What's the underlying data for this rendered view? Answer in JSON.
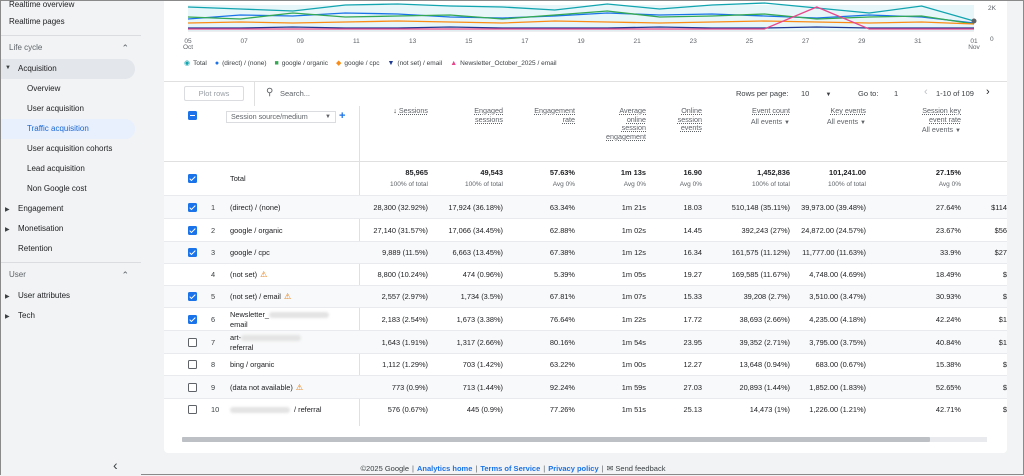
{
  "sidebar": {
    "top_items": [
      "Realtime overview",
      "Realtime pages"
    ],
    "lifecycle_label": "Life cycle",
    "acquisition_label": "Acquisition",
    "acquisition_children": [
      "Overview",
      "User acquisition",
      "Traffic acquisition",
      "User acquisition cohorts",
      "Lead acquisition",
      "Non Google cost"
    ],
    "selected_child": "Traffic acquisition",
    "lifecycle_items": [
      "Engagement",
      "Monetisation",
      "Retention"
    ],
    "user_label": "User",
    "user_items": [
      "User attributes",
      "Tech"
    ]
  },
  "chart": {
    "x_labels": [
      "05\nOct",
      "07",
      "09",
      "11",
      "13",
      "15",
      "17",
      "19",
      "21",
      "23",
      "25",
      "27",
      "29",
      "31",
      "01\nNov"
    ],
    "y_labels": [
      "2K",
      "0"
    ],
    "series_colors": {
      "total": "#12a4af",
      "direct": "#1a73e8",
      "organic": "#34a853",
      "cpc": "#fa8c16",
      "notset_email": "#1f3a93",
      "newsletter": "#e8478b"
    },
    "legend": [
      {
        "label": "Total",
        "icon": "drop-icon",
        "color": "#12a4af"
      },
      {
        "label": "(direct) / (none)",
        "icon": "dot-icon",
        "color": "#1a73e8"
      },
      {
        "label": "google / organic",
        "icon": "square-icon",
        "color": "#34a853"
      },
      {
        "label": "google / cpc",
        "icon": "diamond-icon",
        "color": "#fa8c16"
      },
      {
        "label": "(not set) / email",
        "icon": "triangle-down-icon",
        "color": "#1f3a93"
      },
      {
        "label": "Newsletter_October_2025 / email",
        "icon": "triangle-up-icon",
        "color": "#e8478b"
      }
    ]
  },
  "toolbar": {
    "plot_rows": "Plot rows",
    "search_placeholder": "Search...",
    "rows_per_page_label": "Rows per page:",
    "rows_per_page_value": "10",
    "goto_label": "Go to:",
    "goto_value": "1",
    "page_range": "1-10 of 109"
  },
  "table": {
    "dimension": "Session source/medium",
    "columns": [
      {
        "title": "Sessions",
        "sorted": true
      },
      {
        "title": "Engaged\nsessions"
      },
      {
        "title": "Engagement\nrate"
      },
      {
        "title": "Average\nonline\nsession\nengagement"
      },
      {
        "title": "Online\nsession\nevents"
      },
      {
        "title": "Event count",
        "sub": "All events"
      },
      {
        "title": "Key events",
        "sub": "All events"
      },
      {
        "title": "Session key\nevent rate",
        "sub": "All events"
      }
    ],
    "total": {
      "label": "Total",
      "values": [
        "85,965",
        "49,543",
        "57.63%",
        "1m 13s",
        "16.90",
        "1,452,836",
        "101,241.00",
        "27.15%"
      ],
      "subs": [
        "100% of total",
        "100% of total",
        "Avg 0%",
        "Avg 0%",
        "Avg 0%",
        "100% of total",
        "100% of total",
        "Avg 0%"
      ]
    },
    "rows": [
      {
        "n": "1",
        "name": "(direct) / (none)",
        "checked": true,
        "values": [
          "28,300 (32.92%)",
          "17,924 (36.18%)",
          "63.34%",
          "1m 21s",
          "18.03",
          "510,148 (35.11%)",
          "39,973.00 (39.48%)",
          "27.64%",
          "$114"
        ]
      },
      {
        "n": "2",
        "name": "google / organic",
        "checked": true,
        "values": [
          "27,140 (31.57%)",
          "17,066 (34.45%)",
          "62.88%",
          "1m 02s",
          "14.45",
          "392,243 (27%)",
          "24,872.00 (24.57%)",
          "23.67%",
          "$56"
        ]
      },
      {
        "n": "3",
        "name": "google / cpc",
        "checked": true,
        "values": [
          "9,889 (11.5%)",
          "6,663 (13.45%)",
          "67.38%",
          "1m 12s",
          "16.34",
          "161,575 (11.12%)",
          "11,777.00 (11.63%)",
          "33.9%",
          "$27"
        ]
      },
      {
        "n": "4",
        "name": "(not set)",
        "checked": false,
        "nobox": true,
        "warn": true,
        "values": [
          "8,800 (10.24%)",
          "474 (0.96%)",
          "5.39%",
          "1m 05s",
          "19.27",
          "169,585 (11.67%)",
          "4,748.00 (4.69%)",
          "18.49%",
          "$"
        ]
      },
      {
        "n": "5",
        "name": "(not set) / email",
        "checked": true,
        "warn": true,
        "values": [
          "2,557 (2.97%)",
          "1,734 (3.5%)",
          "67.81%",
          "1m 07s",
          "15.33",
          "39,208 (2.7%)",
          "3,510.00 (3.47%)",
          "30.93%",
          "$"
        ]
      },
      {
        "n": "6",
        "name": "Newsletter_",
        "name2": "email",
        "checked": true,
        "blur": true,
        "values": [
          "2,183 (2.54%)",
          "1,673 (3.38%)",
          "76.64%",
          "1m 22s",
          "17.72",
          "38,693 (2.66%)",
          "4,235.00 (4.18%)",
          "42.24%",
          "$1"
        ]
      },
      {
        "n": "7",
        "name": "art-",
        "name2": "referral",
        "checked": false,
        "blur": true,
        "values": [
          "1,643 (1.91%)",
          "1,317 (2.66%)",
          "80.16%",
          "1m 54s",
          "23.95",
          "39,352 (2.71%)",
          "3,795.00 (3.75%)",
          "40.84%",
          "$1"
        ]
      },
      {
        "n": "8",
        "name": "bing / organic",
        "checked": false,
        "values": [
          "1,112 (1.29%)",
          "703 (1.42%)",
          "63.22%",
          "1m 00s",
          "12.27",
          "13,648 (0.94%)",
          "683.00 (0.67%)",
          "15.38%",
          "$"
        ]
      },
      {
        "n": "9",
        "name": "(data not available)",
        "checked": false,
        "warn": true,
        "values": [
          "773 (0.9%)",
          "713 (1.44%)",
          "92.24%",
          "1m 59s",
          "27.03",
          "20,893 (1.44%)",
          "1,852.00 (1.83%)",
          "52.65%",
          "$"
        ]
      },
      {
        "n": "10",
        "name": "/ referral",
        "checked": false,
        "blur_before": true,
        "values": [
          "576 (0.67%)",
          "445 (0.9%)",
          "77.26%",
          "1m 51s",
          "25.13",
          "14,473 (1%)",
          "1,226.00 (1.21%)",
          "42.71%",
          "$"
        ]
      }
    ]
  },
  "footer": {
    "copyright": "©2025 Google",
    "links": [
      "Analytics home",
      "Terms of Service",
      "Privacy policy"
    ],
    "feedback": "Send feedback"
  }
}
